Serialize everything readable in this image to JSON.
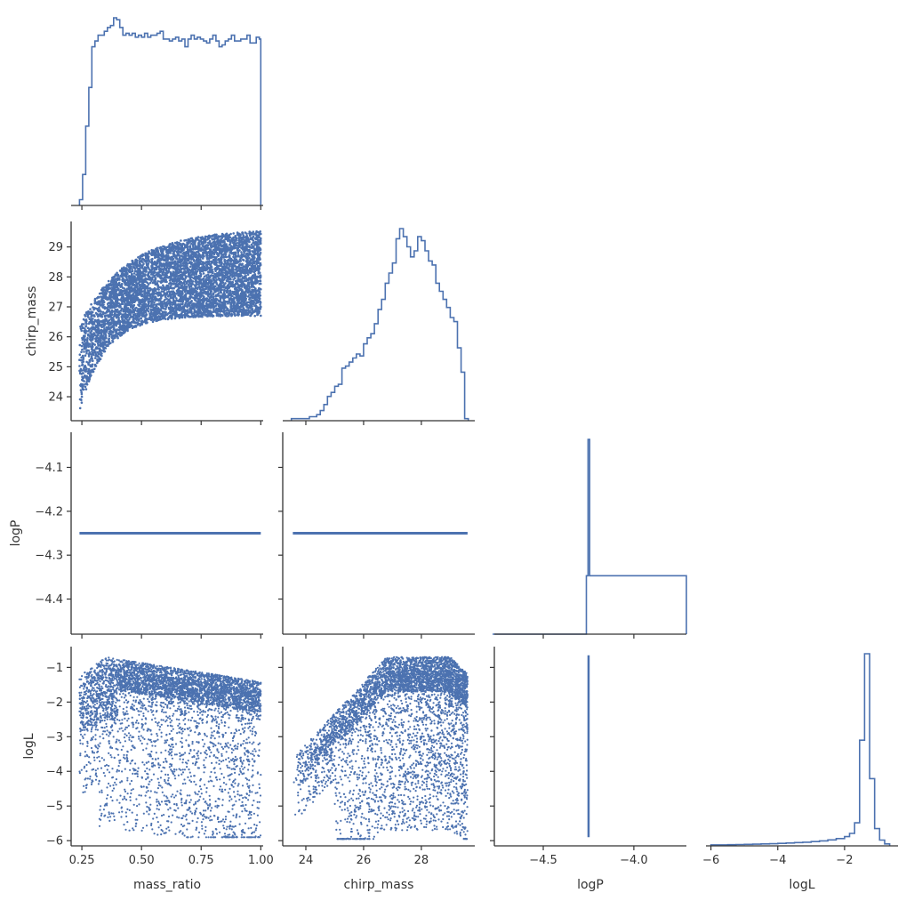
{
  "chart_data": {
    "type": "scatter",
    "kind": "corner-plot",
    "color": "#4c72b0",
    "variables": [
      "mass_ratio",
      "chirp_mass",
      "logP",
      "logL"
    ],
    "axis_labels": {
      "x": [
        "mass_ratio",
        "chirp_mass",
        "logP",
        "logL"
      ],
      "y": [
        "",
        "chirp_mass",
        "logP",
        "logL"
      ]
    },
    "ranges": {
      "mass_ratio": [
        0.205,
        1.01
      ],
      "chirp_mass": [
        23.2,
        29.85
      ],
      "logP": [
        -4.48,
        -4.02
      ],
      "logL": [
        -6.15,
        -0.4
      ],
      "logP_diag": [
        -4.77,
        -3.71
      ]
    },
    "ticks": {
      "mass_ratio": {
        "values": [
          0.25,
          0.5,
          0.75,
          1.0
        ],
        "labels": [
          "0.25",
          "0.50",
          "0.75",
          "1.00"
        ]
      },
      "chirp_mass_x": {
        "values": [
          24,
          26,
          28
        ],
        "labels": [
          "24",
          "26",
          "28"
        ]
      },
      "chirp_mass_y": {
        "values": [
          24,
          25,
          26,
          27,
          28,
          29
        ],
        "labels": [
          "24",
          "25",
          "26",
          "27",
          "28",
          "29"
        ]
      },
      "logP_x": {
        "values": [
          -4.5,
          -4.0
        ],
        "labels": [
          "−4.5",
          "−4.0"
        ]
      },
      "logP_y": {
        "values": [
          -4.1,
          -4.2,
          -4.3,
          -4.4
        ],
        "labels": [
          "−4.1",
          "−4.2",
          "−4.3",
          "−4.4"
        ]
      },
      "logL_x": {
        "values": [
          -6,
          -4,
          -2
        ],
        "labels": [
          "−6",
          "−4",
          "−2"
        ]
      },
      "logL_y": {
        "values": [
          -1,
          -2,
          -3,
          -4,
          -5,
          -6
        ],
        "labels": [
          "−1",
          "−2",
          "−3",
          "−4",
          "−5",
          "−6"
        ]
      }
    },
    "histograms": {
      "mass_ratio": {
        "edges": [
          0.24,
          0.253,
          0.266,
          0.279,
          0.292,
          0.305,
          0.318,
          0.331,
          0.344,
          0.357,
          0.37,
          0.383,
          0.396,
          0.409,
          0.422,
          0.435,
          0.448,
          0.461,
          0.474,
          0.487,
          0.5,
          0.513,
          0.526,
          0.539,
          0.552,
          0.565,
          0.578,
          0.591,
          0.604,
          0.617,
          0.63,
          0.643,
          0.656,
          0.669,
          0.682,
          0.695,
          0.708,
          0.721,
          0.734,
          0.747,
          0.76,
          0.773,
          0.786,
          0.799,
          0.812,
          0.825,
          0.838,
          0.851,
          0.864,
          0.877,
          0.89,
          0.903,
          0.916,
          0.929,
          0.942,
          0.955,
          0.968,
          0.981,
          0.994,
          1.0
        ],
        "counts": [
          3,
          16,
          41,
          61,
          82,
          85,
          88,
          88,
          90,
          92,
          93,
          97,
          96,
          92,
          88,
          89,
          88,
          89,
          87,
          88,
          87,
          89,
          87,
          88,
          88,
          89,
          90,
          86,
          86,
          85,
          86,
          87,
          85,
          86,
          82,
          86,
          88,
          86,
          87,
          86,
          85,
          84,
          86,
          88,
          85,
          82,
          83,
          85,
          86,
          88,
          85,
          85,
          86,
          86,
          88,
          84,
          84,
          87,
          86
        ]
      },
      "chirp_mass": {
        "edges": [
          23.5,
          23.625,
          23.75,
          23.875,
          24.0,
          24.125,
          24.25,
          24.375,
          24.5,
          24.625,
          24.75,
          24.875,
          25.0,
          25.125,
          25.25,
          25.375,
          25.5,
          25.625,
          25.75,
          25.875,
          26.0,
          26.125,
          26.25,
          26.375,
          26.5,
          26.625,
          26.75,
          26.875,
          27.0,
          27.125,
          27.25,
          27.375,
          27.5,
          27.625,
          27.75,
          27.875,
          28.0,
          28.125,
          28.25,
          28.375,
          28.5,
          28.625,
          28.75,
          28.875,
          29.0,
          29.125,
          29.25,
          29.375,
          29.5,
          29.625
        ],
        "counts": [
          1,
          1,
          1,
          1,
          1,
          2,
          2,
          3,
          5,
          8,
          12,
          14,
          17,
          18,
          26,
          27,
          29,
          31,
          33,
          32,
          38,
          41,
          43,
          48,
          55,
          60,
          68,
          73,
          78,
          90,
          95,
          91,
          86,
          81,
          84,
          91,
          89,
          84,
          79,
          77,
          68,
          64,
          60,
          56,
          51,
          49,
          36,
          24,
          1
        ]
      },
      "logP": {
        "edges": [
          -4.78,
          -4.262,
          -4.253,
          -4.244,
          -3.71
        ],
        "counts": [
          0,
          30,
          100,
          30,
          0
        ]
      },
      "logL": {
        "edges": [
          -6.0,
          -5.75,
          -5.5,
          -5.25,
          -5.0,
          -4.75,
          -4.5,
          -4.25,
          -4.0,
          -3.75,
          -3.5,
          -3.25,
          -3.0,
          -2.75,
          -2.5,
          -2.25,
          -2.0,
          -1.85,
          -1.7,
          -1.55,
          -1.4,
          -1.25,
          -1.1,
          -0.95,
          -0.8,
          -0.65
        ],
        "counts": [
          0.5,
          0.5,
          0.6,
          0.7,
          0.8,
          0.9,
          1.0,
          1.1,
          1.3,
          1.5,
          1.7,
          1.9,
          2.2,
          2.6,
          3.1,
          3.8,
          4.8,
          6.5,
          12,
          55,
          100,
          35,
          9,
          3,
          1
        ]
      }
    },
    "scatter": {
      "mass_ratio_vs_chirp_mass": {
        "x": "mass_ratio",
        "y": "chirp_mass",
        "points": 6000
      },
      "mass_ratio_vs_logP": {
        "x": "mass_ratio",
        "y": "logP",
        "logP_value": -4.25
      },
      "chirp_mass_vs_logP": {
        "x": "chirp_mass",
        "y": "logP",
        "logP_value": -4.25
      },
      "mass_ratio_vs_logL": {
        "x": "mass_ratio",
        "y": "logL",
        "points": 5000
      },
      "chirp_mass_vs_logL": {
        "x": "chirp_mass",
        "y": "logL",
        "points": 5000
      },
      "logP_vs_logL": {
        "x": "logP",
        "y": "logL",
        "logP_value": -4.25,
        "logL_range": [
          -5.9,
          -0.65
        ]
      }
    }
  }
}
